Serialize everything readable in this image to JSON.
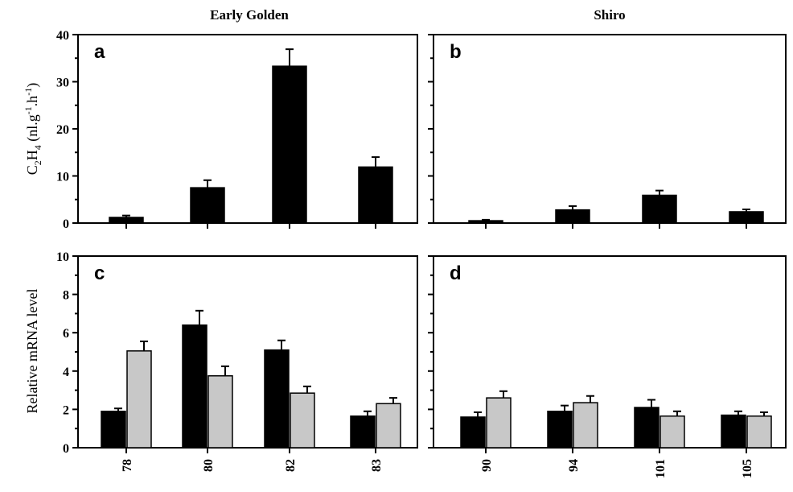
{
  "figure": {
    "column_titles": [
      "Early Golden",
      "Shiro"
    ],
    "ylabel_top": "C2H4 (nl.g-1.h-1)",
    "ylabel_top_parts": {
      "c": "C",
      "sub2": "2",
      "h": "H",
      "sub4": "4",
      "unit1": " (nl.g",
      "sup1": "-1",
      "unit2": ".h",
      "sup2": "-1",
      "close": ")"
    },
    "ylabel_bottom": "Relative mRNA level"
  },
  "colors": {
    "series1": "#000000",
    "series2": "#c8c8c8",
    "axis": "#000000"
  },
  "chart_data": [
    {
      "panel": "a",
      "type": "bar",
      "title": "Early Golden",
      "ylabel": "C2H4 (nl.g-1.h-1)",
      "ylim": [
        0,
        40
      ],
      "yticks": [
        0,
        10,
        20,
        30,
        40
      ],
      "categories": [
        "78",
        "80",
        "82",
        "83"
      ],
      "series": [
        {
          "values": [
            1.2,
            7.5,
            33.3,
            11.9
          ],
          "errors": [
            0.4,
            1.6,
            3.6,
            2.1
          ]
        }
      ]
    },
    {
      "panel": "b",
      "type": "bar",
      "title": "Shiro",
      "ylim": [
        0,
        40
      ],
      "yticks": [
        0,
        10,
        20,
        30,
        40
      ],
      "categories": [
        "90",
        "94",
        "101",
        "105"
      ],
      "series": [
        {
          "values": [
            0.5,
            2.8,
            5.9,
            2.4
          ],
          "errors": [
            0.2,
            0.8,
            1.0,
            0.5
          ]
        }
      ]
    },
    {
      "panel": "c",
      "type": "bar",
      "ylabel": "Relative mRNA level",
      "ylim": [
        0,
        10
      ],
      "yticks": [
        0,
        2,
        4,
        6,
        8,
        10
      ],
      "categories": [
        "78",
        "80",
        "82",
        "83"
      ],
      "series": [
        {
          "values": [
            1.9,
            6.4,
            5.1,
            1.65
          ],
          "errors": [
            0.15,
            0.75,
            0.5,
            0.25
          ]
        },
        {
          "values": [
            5.05,
            3.75,
            2.85,
            2.3
          ],
          "errors": [
            0.5,
            0.5,
            0.35,
            0.3
          ]
        }
      ]
    },
    {
      "panel": "d",
      "type": "bar",
      "ylim": [
        0,
        10
      ],
      "yticks": [
        0,
        2,
        4,
        6,
        8,
        10
      ],
      "categories": [
        "90",
        "94",
        "101",
        "105"
      ],
      "series": [
        {
          "values": [
            1.6,
            1.9,
            2.1,
            1.7
          ],
          "errors": [
            0.25,
            0.3,
            0.4,
            0.2
          ]
        },
        {
          "values": [
            2.6,
            2.35,
            1.65,
            1.65
          ],
          "errors": [
            0.35,
            0.35,
            0.25,
            0.2
          ]
        }
      ]
    }
  ]
}
